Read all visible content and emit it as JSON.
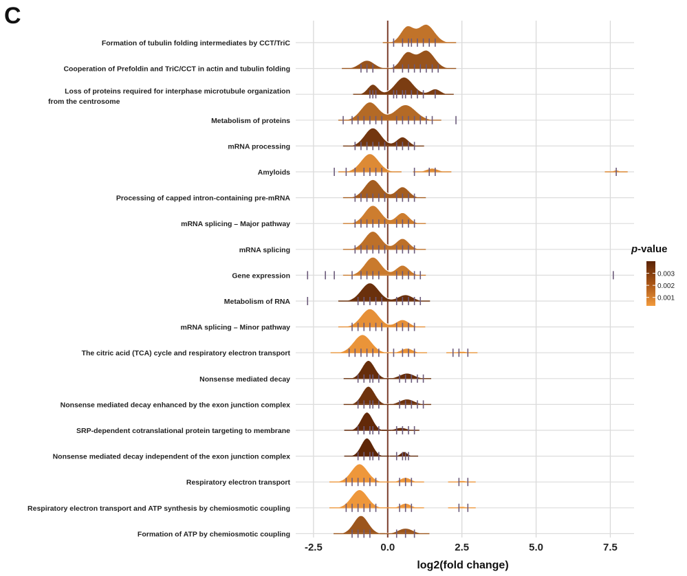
{
  "panel_letter": "C",
  "chart_data": {
    "type": "ridgeline",
    "xlabel": "log2(fold change)",
    "xlim": [
      -3.1,
      8.3
    ],
    "x_ticks": [
      -2.5,
      0.0,
      2.5,
      5.0,
      7.5
    ],
    "x_tick_labels": [
      "-2.5",
      "0.0",
      "2.5",
      "5.0",
      "7.5"
    ],
    "reference_line_x": 0.0,
    "grid": true,
    "legend": {
      "title_prefix": "p",
      "title_suffix": "-value",
      "placement": "right",
      "ticks": [
        0.003,
        0.002,
        0.001
      ],
      "tick_labels": [
        "0.003",
        "0.002",
        "0.001"
      ],
      "color_low": "#f29a3c",
      "color_high": "#5a2306"
    },
    "pathways": [
      {
        "label": "Formation of tubulin folding intermediates by CCT/TriC",
        "p": 0.0015,
        "peaks": [
          [
            0.65,
            0.22,
            0.85
          ],
          [
            1.3,
            0.28,
            1.0
          ]
        ],
        "ticks": [
          0.2,
          0.5,
          0.7,
          0.8,
          1.0,
          1.2,
          1.4,
          1.6
        ]
      },
      {
        "label": "Cooperation of Prefoldin and TriC/CCT in actin and tubulin folding",
        "p": 0.0025,
        "peaks": [
          [
            -0.7,
            0.25,
            0.45
          ],
          [
            0.65,
            0.22,
            0.85
          ],
          [
            1.3,
            0.28,
            1.0
          ]
        ],
        "ticks": [
          -0.9,
          -0.7,
          -0.5,
          0.2,
          0.5,
          0.7,
          0.9,
          1.1,
          1.3,
          1.5,
          1.7
        ]
      },
      {
        "label": "Loss of proteins required for interphase microtubule organization",
        "label2": "from the centrosome",
        "p": 0.0032,
        "peaks": [
          [
            -0.5,
            0.18,
            0.55
          ],
          [
            0.55,
            0.3,
            0.95
          ],
          [
            1.6,
            0.18,
            0.3
          ]
        ],
        "ticks": [
          -0.6,
          -0.5,
          -0.4,
          0.2,
          0.3,
          0.5,
          0.6,
          0.8,
          1.0,
          1.2,
          1.6
        ]
      },
      {
        "label": "Metabolism of proteins",
        "p": 0.0018,
        "peaks": [
          [
            -0.6,
            0.3,
            1.0
          ],
          [
            0.6,
            0.35,
            0.85
          ]
        ],
        "ticks": [
          -1.5,
          -1.2,
          -1.0,
          -0.8,
          -0.6,
          -0.4,
          -0.2,
          0.3,
          0.5,
          0.7,
          0.9,
          1.1,
          1.3,
          1.5,
          2.3
        ]
      },
      {
        "label": "mRNA processing",
        "p": 0.0034,
        "peaks": [
          [
            -0.5,
            0.28,
            1.0
          ],
          [
            0.5,
            0.2,
            0.5
          ]
        ],
        "ticks": [
          -1.1,
          -0.9,
          -0.7,
          -0.5,
          -0.3,
          -0.1,
          0.3,
          0.5,
          0.7,
          0.9
        ]
      },
      {
        "label": "Amyloids",
        "p": 0.0008,
        "peaks": [
          [
            -0.6,
            0.3,
            1.0
          ],
          [
            1.5,
            0.2,
            0.2
          ],
          [
            7.7,
            0.1,
            0.1
          ]
        ],
        "ticks": [
          -1.8,
          -1.4,
          -1.1,
          -0.8,
          -0.6,
          -0.4,
          -0.2,
          0.9,
          1.4,
          1.6,
          7.7
        ]
      },
      {
        "label": "Processing of capped intron-containing pre-mRNA",
        "p": 0.0022,
        "peaks": [
          [
            -0.5,
            0.28,
            1.0
          ],
          [
            0.5,
            0.22,
            0.6
          ]
        ],
        "ticks": [
          -1.1,
          -0.9,
          -0.7,
          -0.5,
          -0.3,
          -0.1,
          0.3,
          0.5,
          0.7,
          0.9
        ]
      },
      {
        "label": "mRNA splicing – Major pathway",
        "p": 0.0012,
        "peaks": [
          [
            -0.5,
            0.28,
            1.0
          ],
          [
            0.5,
            0.22,
            0.6
          ]
        ],
        "ticks": [
          -1.1,
          -0.9,
          -0.7,
          -0.5,
          -0.3,
          -0.1,
          0.3,
          0.5,
          0.7,
          0.9
        ]
      },
      {
        "label": "mRNA splicing",
        "p": 0.0016,
        "peaks": [
          [
            -0.5,
            0.28,
            1.0
          ],
          [
            0.5,
            0.22,
            0.6
          ]
        ],
        "ticks": [
          -1.1,
          -0.9,
          -0.7,
          -0.5,
          -0.3,
          -0.1,
          0.3,
          0.5,
          0.7,
          0.9
        ]
      },
      {
        "label": "Gene expression",
        "p": 0.0013,
        "peaks": [
          [
            -0.5,
            0.28,
            1.0
          ],
          [
            0.5,
            0.22,
            0.55
          ]
        ],
        "ticks": [
          -2.7,
          -2.1,
          -1.8,
          -1.2,
          -0.9,
          -0.7,
          -0.5,
          -0.3,
          0.3,
          0.5,
          0.7,
          0.9,
          1.1,
          7.6
        ]
      },
      {
        "label": "Metabolism of RNA",
        "p": 0.0036,
        "peaks": [
          [
            -0.6,
            0.3,
            1.0
          ],
          [
            0.6,
            0.25,
            0.35
          ]
        ],
        "ticks": [
          -2.7,
          -1.0,
          -0.8,
          -0.6,
          -0.4,
          -0.2,
          0.3,
          0.5,
          0.7,
          0.9,
          1.1
        ]
      },
      {
        "label": "mRNA splicing – Minor pathway",
        "p": 0.0006,
        "peaks": [
          [
            -0.6,
            0.3,
            1.0
          ],
          [
            0.5,
            0.22,
            0.4
          ]
        ],
        "ticks": [
          -1.2,
          -1.0,
          -0.8,
          -0.6,
          -0.4,
          -0.2,
          0.3,
          0.5,
          0.7,
          0.9
        ]
      },
      {
        "label": "The citric acid (TCA) cycle and respiratory electron transport",
        "p": 0.0005,
        "peaks": [
          [
            -0.85,
            0.3,
            1.0
          ],
          [
            0.65,
            0.2,
            0.25
          ],
          [
            2.5,
            0.18,
            0.08
          ]
        ],
        "ticks": [
          -1.3,
          -1.1,
          -0.9,
          -0.7,
          -0.5,
          -0.3,
          0.2,
          0.5,
          0.7,
          0.9,
          2.2,
          2.4,
          2.7
        ]
      },
      {
        "label": "Nonsense mediated decay",
        "p": 0.0037,
        "peaks": [
          [
            -0.65,
            0.22,
            1.0
          ],
          [
            0.65,
            0.25,
            0.3
          ]
        ],
        "ticks": [
          -1.0,
          -0.8,
          -0.6,
          -0.5,
          -0.3,
          0.4,
          0.6,
          0.8,
          1.0,
          1.2
        ]
      },
      {
        "label": "Nonsense mediated decay enhanced by the exon junction complex",
        "p": 0.0035,
        "peaks": [
          [
            -0.65,
            0.22,
            1.0
          ],
          [
            0.65,
            0.25,
            0.3
          ]
        ],
        "ticks": [
          -1.0,
          -0.8,
          -0.6,
          -0.5,
          -0.3,
          0.4,
          0.6,
          0.8,
          1.0,
          1.2
        ]
      },
      {
        "label": "SRP-dependent cotranslational protein targeting to membrane",
        "p": 0.0038,
        "peaks": [
          [
            -0.7,
            0.2,
            1.0
          ],
          [
            0.45,
            0.2,
            0.15
          ]
        ],
        "ticks": [
          -1.0,
          -0.8,
          -0.6,
          -0.5,
          -0.3,
          0.3,
          0.5,
          0.7,
          0.9
        ]
      },
      {
        "label": "Nonsense mediated decay independent of the exon junction complex",
        "p": 0.0039,
        "peaks": [
          [
            -0.7,
            0.2,
            1.0
          ],
          [
            0.55,
            0.12,
            0.25
          ]
        ],
        "ticks": [
          -1.0,
          -0.8,
          -0.6,
          -0.5,
          -0.3,
          0.3,
          0.5,
          0.6,
          0.7
        ]
      },
      {
        "label": "Respiratory electron transport",
        "p": 0.0004,
        "peaks": [
          [
            -0.95,
            0.28,
            1.0
          ],
          [
            0.6,
            0.18,
            0.25
          ],
          [
            2.5,
            0.15,
            0.08
          ]
        ],
        "ticks": [
          -1.4,
          -1.2,
          -1.0,
          -0.8,
          -0.6,
          -0.4,
          0.4,
          0.6,
          0.8,
          2.4,
          2.7
        ]
      },
      {
        "label": "Respiratory electron transport and ATP synthesis by chemiosmotic coupling",
        "p": 0.0004,
        "peaks": [
          [
            -0.95,
            0.28,
            1.0
          ],
          [
            0.6,
            0.18,
            0.25
          ],
          [
            2.5,
            0.15,
            0.08
          ]
        ],
        "ticks": [
          -1.4,
          -1.2,
          -1.0,
          -0.8,
          -0.6,
          -0.4,
          0.4,
          0.6,
          0.8,
          2.4,
          2.7
        ]
      },
      {
        "label": "Formation of ATP by chemiosmotic coupling",
        "p": 0.0024,
        "peaks": [
          [
            -0.9,
            0.25,
            1.0
          ],
          [
            0.6,
            0.25,
            0.3
          ]
        ],
        "ticks": [
          -1.2,
          -1.0,
          -0.8,
          -0.6,
          0.3,
          0.6,
          0.9
        ]
      }
    ]
  }
}
